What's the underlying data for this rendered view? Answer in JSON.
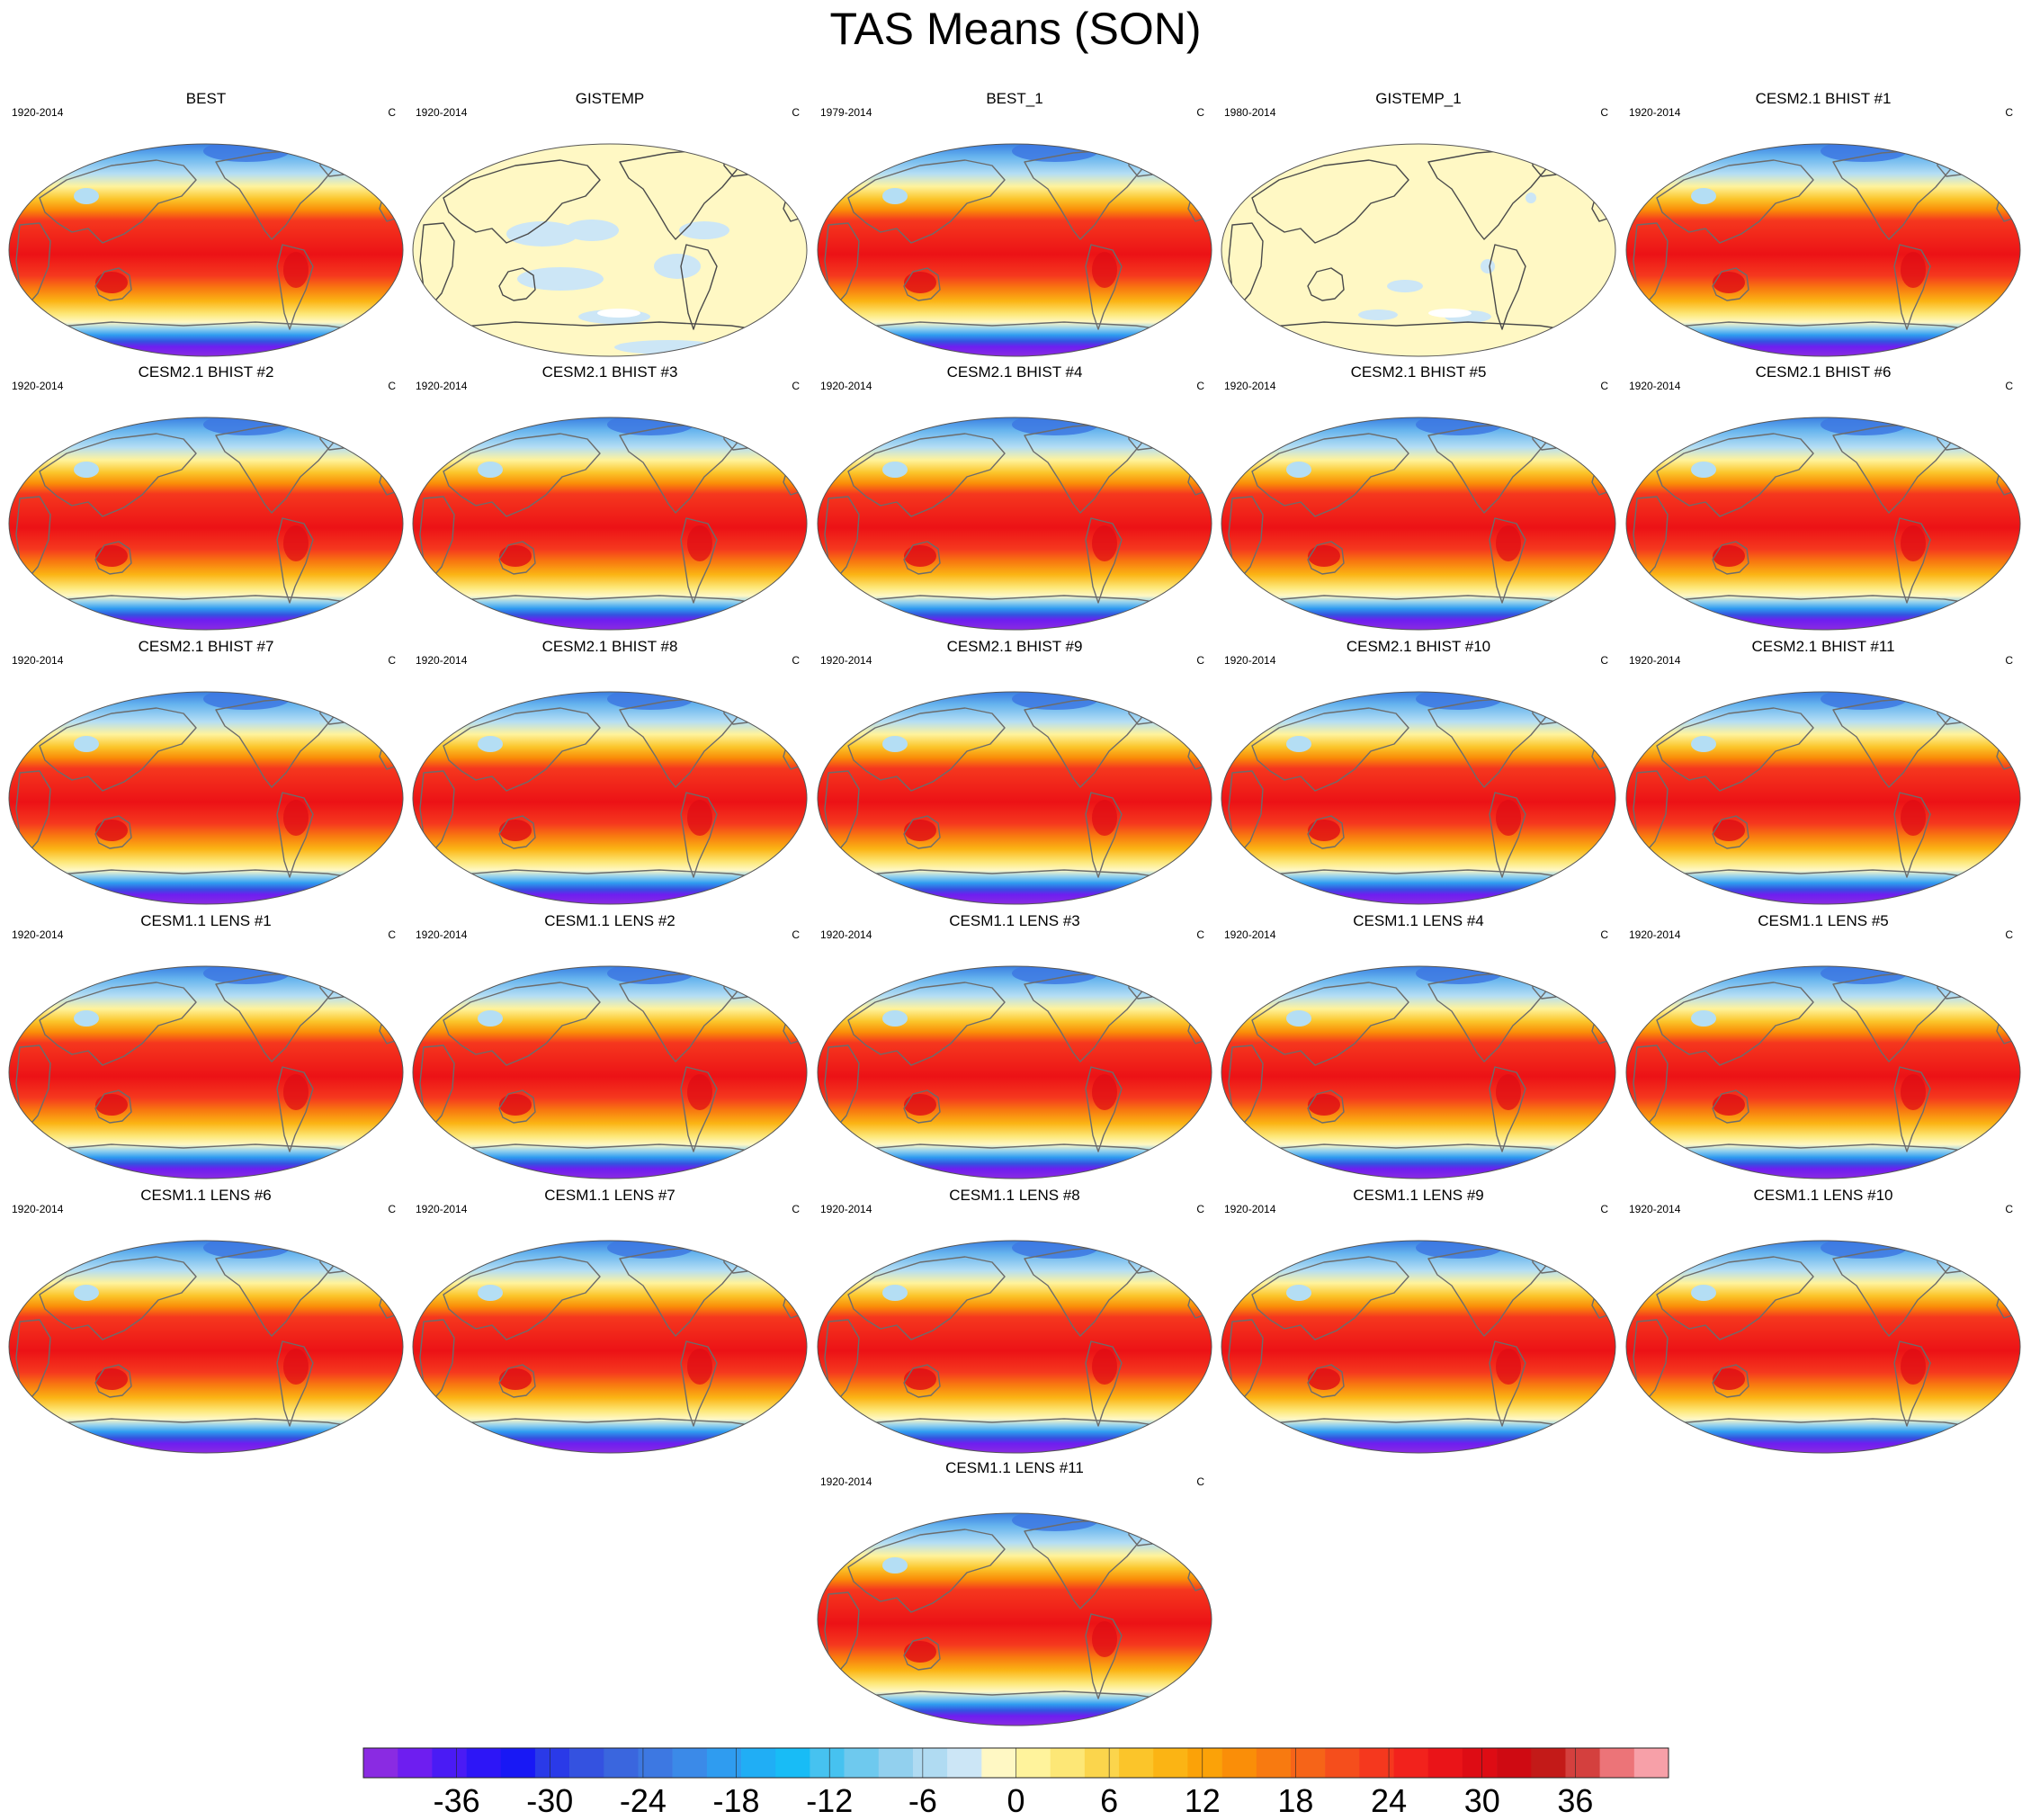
{
  "title": "TAS Means (SON)",
  "chart_data": {
    "type": "heatmap",
    "title": "TAS Means (SON)",
    "units": "C",
    "projection": "Robinson-like global map, Pacific centered",
    "panels": [
      {
        "name": "BEST",
        "years": "1920-2014",
        "unit": "C",
        "kind": "field"
      },
      {
        "name": "GISTEMP",
        "years": "1920-2014",
        "unit": "C",
        "kind": "anomaly"
      },
      {
        "name": "BEST_1",
        "years": "1979-2014",
        "unit": "C",
        "kind": "field"
      },
      {
        "name": "GISTEMP_1",
        "years": "1980-2014",
        "unit": "C",
        "kind": "anomaly"
      },
      {
        "name": "CESM2.1 BHIST #1",
        "years": "1920-2014",
        "unit": "C",
        "kind": "field"
      },
      {
        "name": "CESM2.1 BHIST #2",
        "years": "1920-2014",
        "unit": "C",
        "kind": "field"
      },
      {
        "name": "CESM2.1 BHIST #3",
        "years": "1920-2014",
        "unit": "C",
        "kind": "field"
      },
      {
        "name": "CESM2.1 BHIST #4",
        "years": "1920-2014",
        "unit": "C",
        "kind": "field"
      },
      {
        "name": "CESM2.1 BHIST #5",
        "years": "1920-2014",
        "unit": "C",
        "kind": "field"
      },
      {
        "name": "CESM2.1 BHIST #6",
        "years": "1920-2014",
        "unit": "C",
        "kind": "field"
      },
      {
        "name": "CESM2.1 BHIST #7",
        "years": "1920-2014",
        "unit": "C",
        "kind": "field"
      },
      {
        "name": "CESM2.1 BHIST #8",
        "years": "1920-2014",
        "unit": "C",
        "kind": "field"
      },
      {
        "name": "CESM2.1 BHIST #9",
        "years": "1920-2014",
        "unit": "C",
        "kind": "field"
      },
      {
        "name": "CESM2.1 BHIST #10",
        "years": "1920-2014",
        "unit": "C",
        "kind": "field"
      },
      {
        "name": "CESM2.1 BHIST #11",
        "years": "1920-2014",
        "unit": "C",
        "kind": "field"
      },
      {
        "name": "CESM1.1 LENS #1",
        "years": "1920-2014",
        "unit": "C",
        "kind": "field"
      },
      {
        "name": "CESM1.1 LENS #2",
        "years": "1920-2014",
        "unit": "C",
        "kind": "field"
      },
      {
        "name": "CESM1.1 LENS #3",
        "years": "1920-2014",
        "unit": "C",
        "kind": "field"
      },
      {
        "name": "CESM1.1 LENS #4",
        "years": "1920-2014",
        "unit": "C",
        "kind": "field"
      },
      {
        "name": "CESM1.1 LENS #5",
        "years": "1920-2014",
        "unit": "C",
        "kind": "field"
      },
      {
        "name": "CESM1.1 LENS #6",
        "years": "1920-2014",
        "unit": "C",
        "kind": "field"
      },
      {
        "name": "CESM1.1 LENS #7",
        "years": "1920-2014",
        "unit": "C",
        "kind": "field"
      },
      {
        "name": "CESM1.1 LENS #8",
        "years": "1920-2014",
        "unit": "C",
        "kind": "field"
      },
      {
        "name": "CESM1.1 LENS #9",
        "years": "1920-2014",
        "unit": "C",
        "kind": "field"
      },
      {
        "name": "CESM1.1 LENS #10",
        "years": "1920-2014",
        "unit": "C",
        "kind": "field"
      },
      {
        "name": "CESM1.1 LENS #11",
        "years": "1920-2014",
        "unit": "C",
        "kind": "field"
      }
    ],
    "colorbar": {
      "min": -42,
      "max": 42,
      "step": 2,
      "tick_labels": [
        "-36",
        "-30",
        "-24",
        "-18",
        "-12",
        "-6",
        "0",
        "6",
        "12",
        "18",
        "24",
        "30",
        "36"
      ],
      "colors": [
        "#8a2be2",
        "#6e1ef0",
        "#4a1bf5",
        "#2d16f7",
        "#1818f5",
        "#2a3ae8",
        "#3452e0",
        "#3a66de",
        "#3d78e2",
        "#3b8ae8",
        "#2f9cf0",
        "#20aef5",
        "#18bcf6",
        "#46c2f0",
        "#6ec9ee",
        "#92d0ee",
        "#b0dbf2",
        "#cce6f6",
        "#fff8c4",
        "#fff39c",
        "#fde776",
        "#fbd54c",
        "#fbc52a",
        "#fbb414",
        "#fba208",
        "#fa8e08",
        "#f87a10",
        "#f66418",
        "#f54e1c",
        "#f5381e",
        "#f2221c",
        "#ea1418",
        "#de0c14",
        "#cf0a12",
        "#c31a18",
        "#d4403e",
        "#ec7478",
        "#f7a0a8"
      ]
    },
    "gistemp_values": {
      "ocean_bins": [
        "0 to 2",
        "-2 to 0"
      ],
      "land_bin": "0 to 2"
    }
  }
}
